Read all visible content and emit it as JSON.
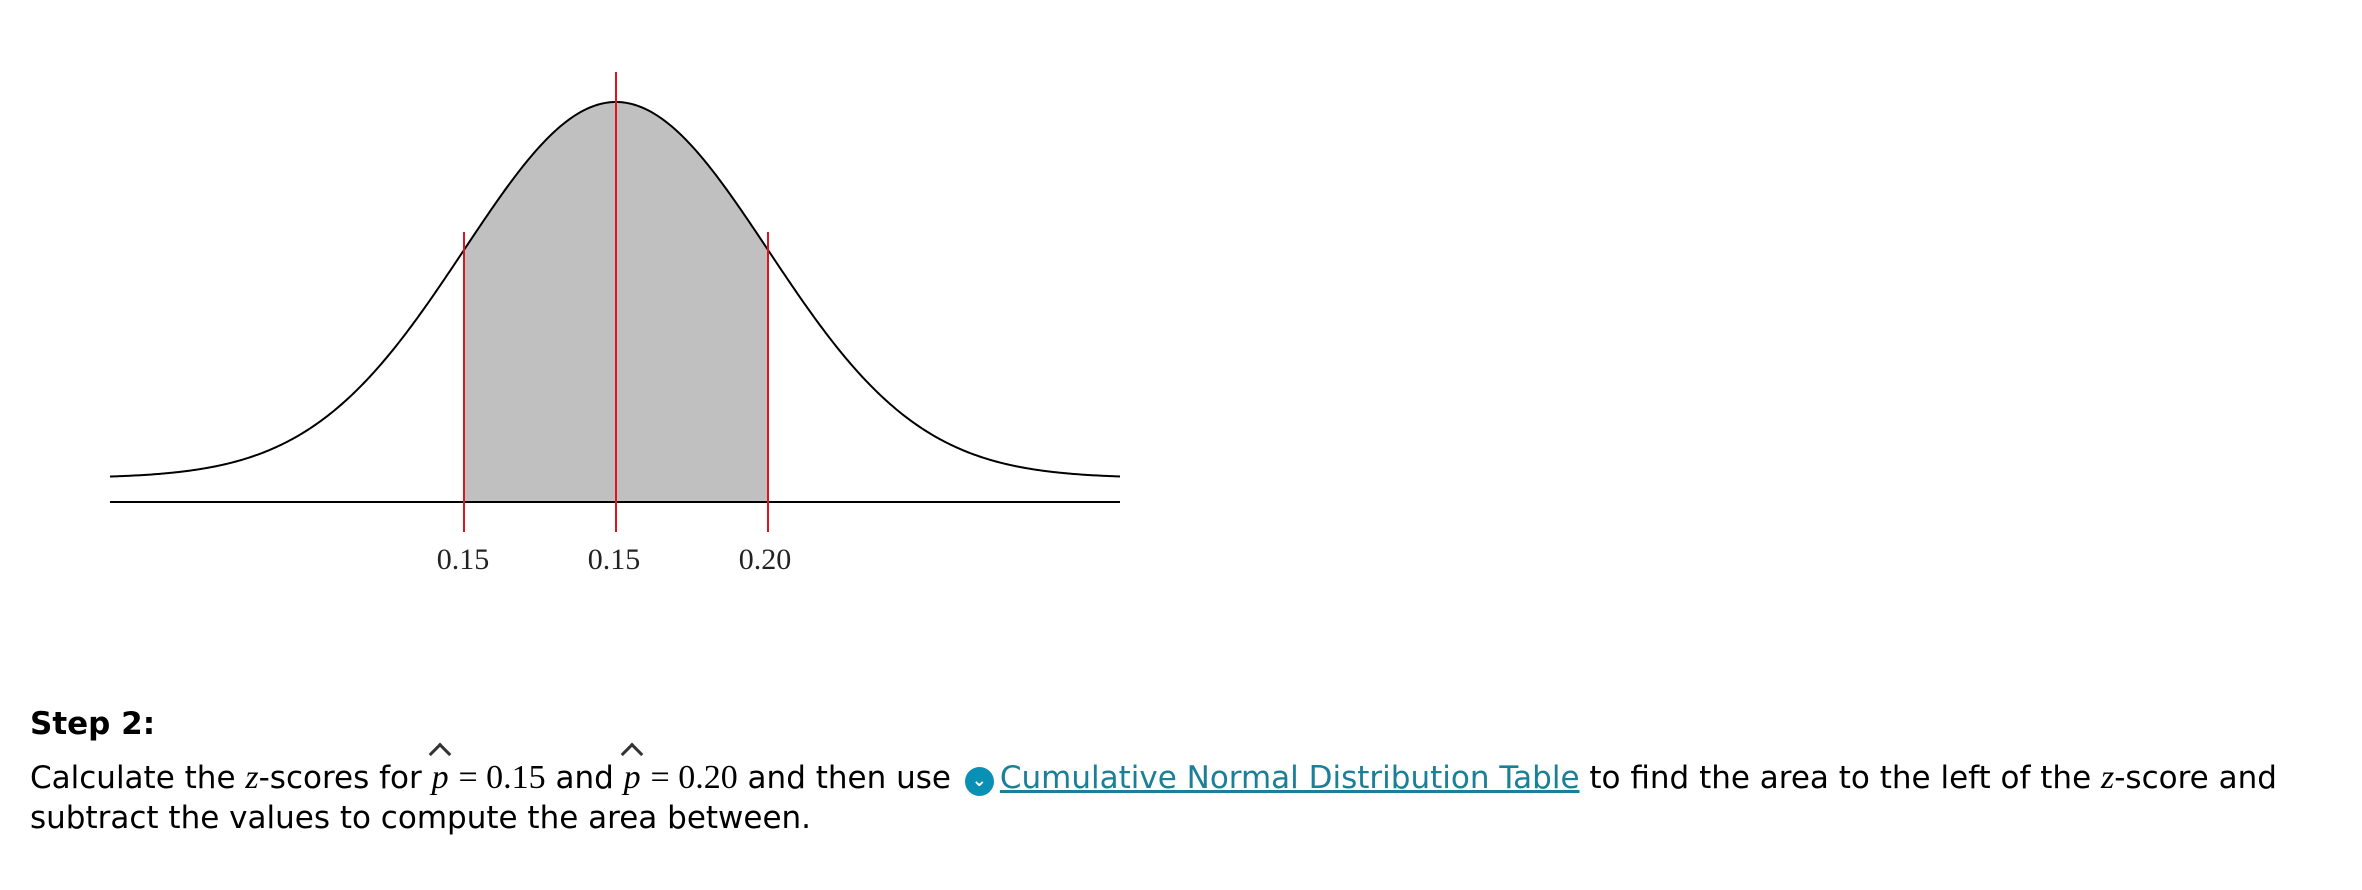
{
  "chart_data": {
    "type": "area",
    "distribution": "normal",
    "mean_label": "0.15",
    "tick_labels": [
      "0.15",
      "0.15",
      "0.20"
    ],
    "shaded_region": {
      "from_label": "0.15",
      "to_label": "0.20"
    },
    "colors": {
      "curve": "#000000",
      "shade": "#c0c0c0",
      "marker_lines": "#e0141e",
      "axis": "#000000"
    }
  },
  "step": {
    "heading": "Step 2:",
    "text_1": "Calculate the ",
    "z_var": "z",
    "text_2": "-scores for ",
    "p_var": "p",
    "eq_1": "= 0.15",
    "text_and": " and ",
    "p_var_2": "p",
    "eq_2": "= 0.20",
    "text_3": " and then use ",
    "link_icon": "chevron-down-circle-icon",
    "link_text": "Cumulative Normal Distribution Table",
    "text_4": " to find the area to the left of the ",
    "z_var_2": "z",
    "text_5": "-score and subtract the values to compute the area between."
  }
}
